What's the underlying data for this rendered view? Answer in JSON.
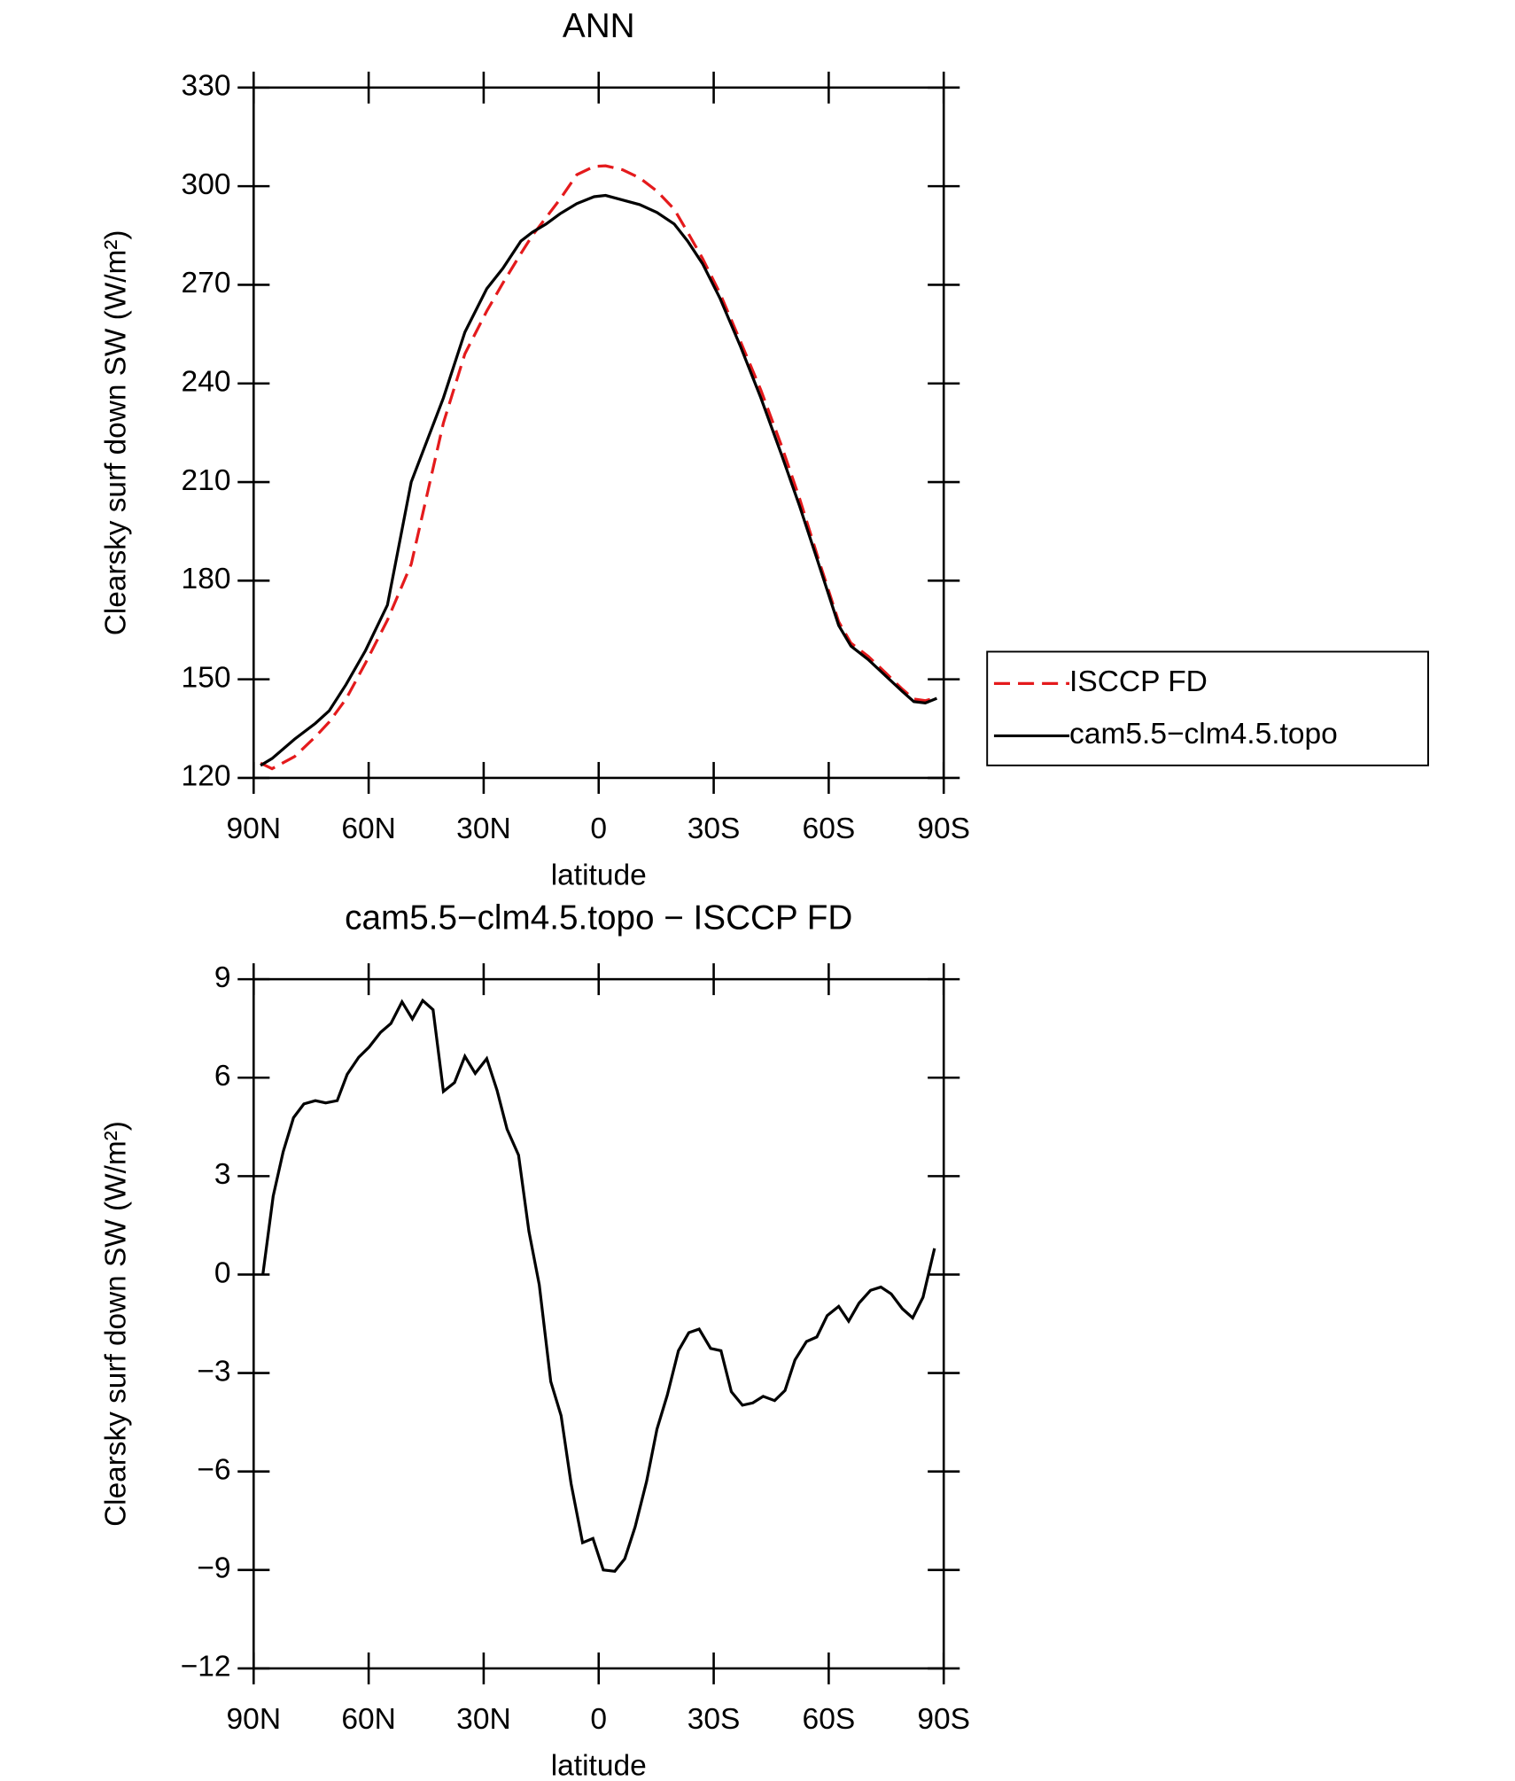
{
  "chart_data": [
    {
      "type": "line",
      "title": "ANN",
      "xlabel": "latitude",
      "ylabel": "Clearsky surf down SW (W/m²)",
      "x": [
        88.2,
        85.2,
        79.3,
        73.9,
        70.3,
        65.9,
        60.8,
        55.1,
        48.9,
        40.5,
        34.9,
        29.2,
        25,
        20.3,
        17.3,
        13.7,
        10.1,
        5.7,
        1.2,
        -1.8,
        -6.2,
        -10.7,
        -15.2,
        -19.7,
        -23.2,
        -27.1,
        -31.6,
        -36.9,
        -42.3,
        -47.7,
        -52.4,
        -57.2,
        -62.6,
        -65.8,
        -70.3,
        -74.8,
        -79.2,
        -82.2,
        -85.2,
        -88.2
      ],
      "series": [
        {
          "name": "ISCCP FD",
          "color": "#e41a1c",
          "linestyle": "dashed",
          "values": [
            124.5,
            122.8,
            126.5,
            132.5,
            137,
            144,
            155,
            168,
            185,
            228,
            249,
            262,
            270.5,
            279.5,
            285,
            290.5,
            296,
            303.5,
            306,
            306.2,
            305,
            302.5,
            298.5,
            293,
            286,
            278,
            267.5,
            253,
            238,
            221,
            205,
            187,
            167.5,
            161,
            157,
            152,
            147,
            144,
            143.5,
            144.5
          ]
        },
        {
          "name": "cam5.5−clm4.5.topo",
          "color": "#000000",
          "linestyle": "solid",
          "values": [
            123.8,
            125.9,
            131.8,
            136.6,
            140.4,
            148.4,
            158.8,
            172.6,
            210,
            235.6,
            255.6,
            268.8,
            275,
            283.3,
            286,
            288.5,
            291.6,
            294.7,
            296.8,
            297.2,
            295.8,
            294.4,
            292,
            288.5,
            283.3,
            276.4,
            266,
            251.5,
            235.6,
            218.3,
            202.7,
            185.7,
            166.4,
            160.1,
            156,
            151.1,
            146.3,
            143.2,
            142.8,
            144.2
          ]
        }
      ],
      "xlim": [
        90,
        -90
      ],
      "xticks": [
        {
          "value": 90,
          "label": "90N"
        },
        {
          "value": 60,
          "label": "60N"
        },
        {
          "value": 30,
          "label": "30N"
        },
        0,
        {
          "value": -30,
          "label": "30S"
        },
        {
          "value": -60,
          "label": "60S"
        },
        {
          "value": -90,
          "label": "90S"
        }
      ],
      "ylim": [
        120,
        330
      ],
      "yticks": [
        120,
        150,
        180,
        210,
        240,
        270,
        300,
        330
      ],
      "legend": "right"
    },
    {
      "type": "line",
      "title": "cam5.5−clm4.5.topo − ISCCP FD",
      "xlabel": "latitude",
      "ylabel": "Clearsky surf down SW (W/m²)",
      "x": [
        87.6,
        84.9,
        82.3,
        79.6,
        76.9,
        73.9,
        71.2,
        68.2,
        65.6,
        62.6,
        59.9,
        56.9,
        54.2,
        51.3,
        48.6,
        45.9,
        43.2,
        40.5,
        37.6,
        34.9,
        32.2,
        29.2,
        26.5,
        23.9,
        20.9,
        18.2,
        15.5,
        12.5,
        9.8,
        7.2,
        4.2,
        1.5,
        -1.2,
        -4.2,
        -6.8,
        -9.5,
        -12.5,
        -15.2,
        -17.9,
        -20.8,
        -23.5,
        -26.2,
        -29.2,
        -31.9,
        -34.6,
        -37.5,
        -40.2,
        -42.9,
        -45.9,
        -48.6,
        -51.2,
        -54.2,
        -56.9,
        -59.6,
        -62.6,
        -65.2,
        -67.9,
        -70.9,
        -73.6,
        -76.3,
        -79.2,
        -81.9,
        -84.6,
        -87.6
      ],
      "values": [
        0,
        2.39,
        3.74,
        4.78,
        5.2,
        5.3,
        5.23,
        5.3,
        6.1,
        6.62,
        6.93,
        7.38,
        7.65,
        8.31,
        7.79,
        8.35,
        8.07,
        5.58,
        5.85,
        6.65,
        6.13,
        6.58,
        5.61,
        4.43,
        3.64,
        1.32,
        -0.31,
        -3.26,
        -4.3,
        -6.37,
        -8.17,
        -8.04,
        -9.0,
        -9.04,
        -8.66,
        -7.69,
        -6.3,
        -4.71,
        -3.67,
        -2.32,
        -1.77,
        -1.66,
        -2.25,
        -2.32,
        -3.57,
        -3.98,
        -3.91,
        -3.71,
        -3.84,
        -3.53,
        -2.6,
        -2.04,
        -1.9,
        -1.25,
        -0.97,
        -1.42,
        -0.87,
        -0.48,
        -0.38,
        -0.59,
        -1.04,
        -1.32,
        -0.69,
        0.8
      ],
      "color": "#000000",
      "linestyle": "solid",
      "xlim": [
        90,
        -90
      ],
      "xticks": [
        {
          "value": 90,
          "label": "90N"
        },
        {
          "value": 60,
          "label": "60N"
        },
        {
          "value": 30,
          "label": "30N"
        },
        0,
        {
          "value": -30,
          "label": "30S"
        },
        {
          "value": -60,
          "label": "60S"
        },
        {
          "value": -90,
          "label": "90S"
        }
      ],
      "ylim": [
        -12,
        9
      ],
      "yticks": [
        {
          "value": -12,
          "label": "−12"
        },
        {
          "value": -9,
          "label": "−9"
        },
        {
          "value": -6,
          "label": "−6"
        },
        {
          "value": -3,
          "label": "−3"
        },
        0,
        3,
        6,
        9
      ]
    }
  ]
}
